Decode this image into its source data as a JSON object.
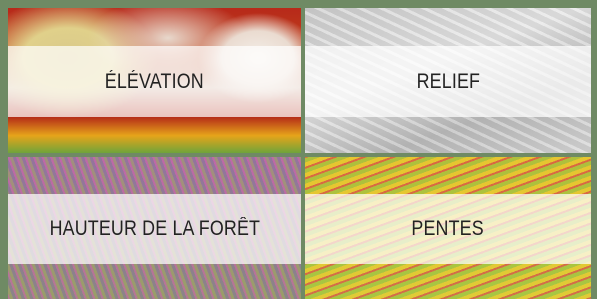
{
  "tiles": [
    {
      "label": "ÉLÉVATION"
    },
    {
      "label": "RELIEF"
    },
    {
      "label": "HAUTEUR DE LA FORÊT"
    },
    {
      "label": "PENTES"
    }
  ]
}
